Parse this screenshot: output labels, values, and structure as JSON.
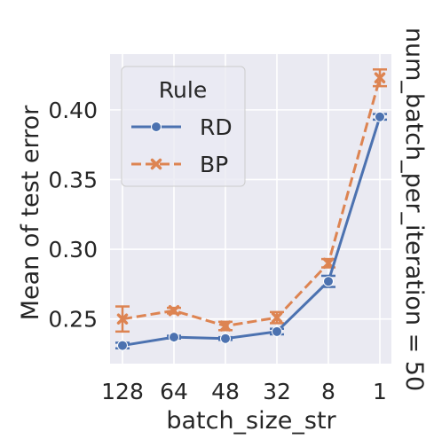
{
  "chart_data": {
    "type": "line",
    "categories": [
      "128",
      "64",
      "48",
      "32",
      "8",
      "1"
    ],
    "series": [
      {
        "name": "RD",
        "color": "#4c72b0",
        "marker": "circle",
        "dashed": false,
        "values": [
          0.231,
          0.237,
          0.236,
          0.241,
          0.277,
          0.395
        ],
        "err": [
          0.002,
          0.001,
          0.001,
          0.002,
          0.004,
          0.002
        ]
      },
      {
        "name": "BP",
        "color": "#dd8452",
        "marker": "x",
        "dashed": true,
        "values": [
          0.25,
          0.256,
          0.245,
          0.251,
          0.29,
          0.423
        ],
        "err": [
          0.009,
          0.002,
          0.003,
          0.004,
          0.003,
          0.006
        ]
      }
    ],
    "xlabel": "batch_size_str",
    "ylabel": "Mean of test error",
    "facet_label": "num_batch_per_iteration = 50",
    "legend_title": "Rule",
    "legend_position": "upper-left",
    "yticks": [
      0.25,
      0.3,
      0.35,
      0.4
    ],
    "ytick_labels": [
      "0.25",
      "0.30",
      "0.35",
      "0.40"
    ],
    "ylim": [
      0.218,
      0.44
    ],
    "grid": true,
    "background": "#eaeaf2",
    "grid_color": "#ffffff"
  }
}
